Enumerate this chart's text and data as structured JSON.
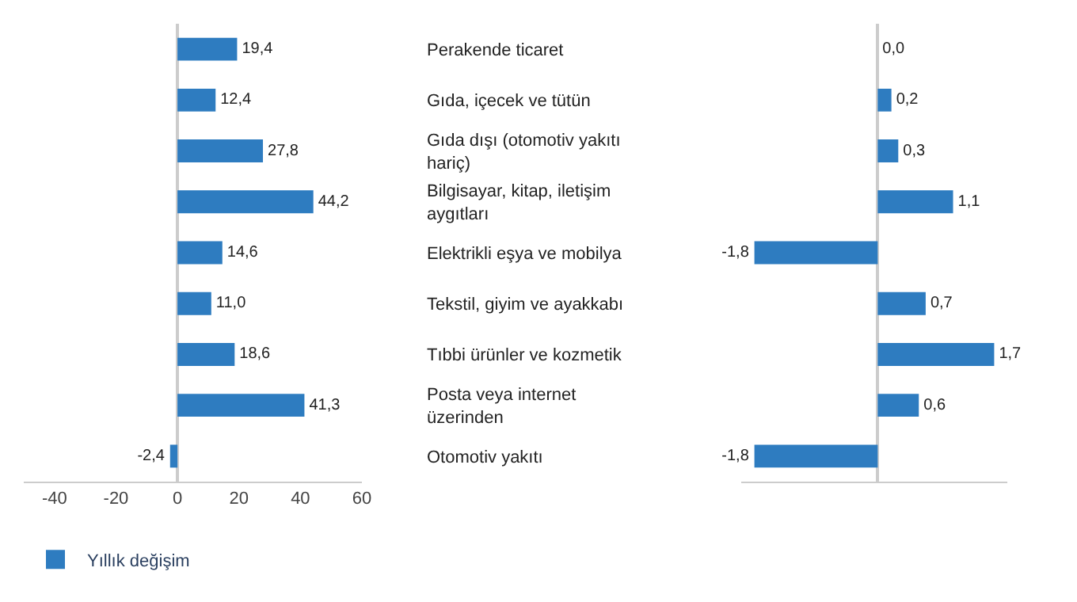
{
  "chart_data": [
    {
      "type": "bar",
      "orientation": "horizontal",
      "categories": [
        "Perakende ticaret",
        "Gıda, içecek ve tütün",
        "Gıda dışı (otomotiv yakıtı hariç)",
        "Bilgisayar, kitap, iletişim aygıtları",
        "Elektrikli eşya ve mobilya",
        "Tekstil, giyim ve ayakkabı",
        "Tıbbi ürünler ve kozmetik",
        "Posta veya internet üzerinden",
        "Otomotiv yakıtı"
      ],
      "series": [
        {
          "name": "Yıllık değişim",
          "color": "#2e7cc0",
          "values": [
            19.4,
            12.4,
            27.8,
            44.2,
            14.6,
            11.0,
            18.6,
            41.3,
            -2.4
          ],
          "value_labels": [
            "19,4",
            "12,4",
            "27,8",
            "44,2",
            "14,6",
            "11,0",
            "18,6",
            "41,3",
            "-2,4"
          ]
        }
      ],
      "xlim": [
        -50,
        60
      ],
      "xticks": [
        -40,
        -20,
        0,
        20,
        40,
        60
      ],
      "legend": "bottom left"
    },
    {
      "type": "bar",
      "orientation": "horizontal",
      "categories": [
        null,
        null,
        null,
        null,
        null,
        null,
        null,
        null,
        null
      ],
      "series": [
        {
          "color": "#2e7cc0",
          "values": [
            0.0,
            0.2,
            0.3,
            1.1,
            -1.8,
            0.7,
            1.7,
            0.6,
            -1.8
          ],
          "value_labels": [
            "0,0",
            "0,2",
            "0,3",
            "1,1",
            "-1,8",
            "0,7",
            "1,7",
            "0,6",
            "-1,8"
          ]
        }
      ],
      "tick_labels": false
    }
  ]
}
